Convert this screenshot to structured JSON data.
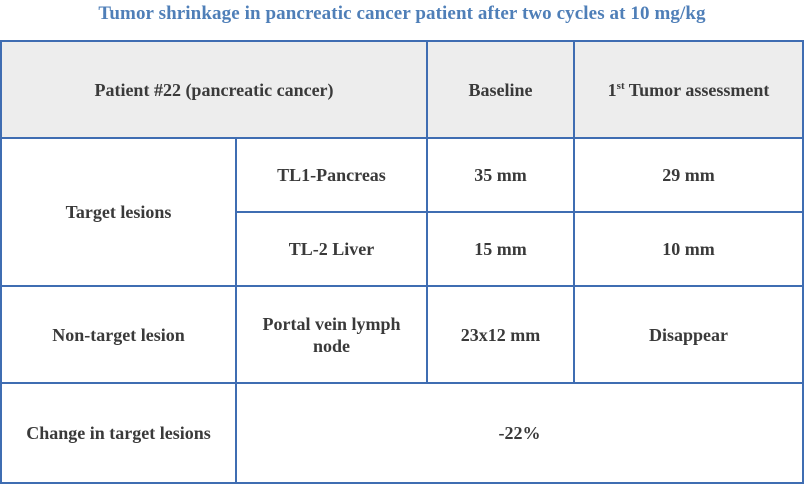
{
  "title": "Tumor shrinkage in pancreatic cancer patient after two cycles at 10 mg/kg",
  "header": {
    "patient": "Patient #22 (pancreatic cancer)",
    "baseline": "Baseline",
    "assessment_ordinal": "1",
    "assessment_suffix": "st",
    "assessment_label": " Tumor assessment"
  },
  "target_lesions": {
    "label": "Target lesions",
    "rows": [
      {
        "site": "TL1-Pancreas",
        "baseline": "35 mm",
        "assessment": "29 mm"
      },
      {
        "site": "TL-2 Liver",
        "baseline": "15 mm",
        "assessment": "10 mm"
      }
    ]
  },
  "non_target": {
    "label": "Non-target lesion",
    "site": "Portal vein lymph node",
    "baseline": "23x12 mm",
    "assessment": "Disappear"
  },
  "change": {
    "label": "Change in target lesions",
    "value": "-22%"
  },
  "colors": {
    "title": "#4f7fb8",
    "border": "#3f6db2",
    "header_bg": "#ededed"
  }
}
